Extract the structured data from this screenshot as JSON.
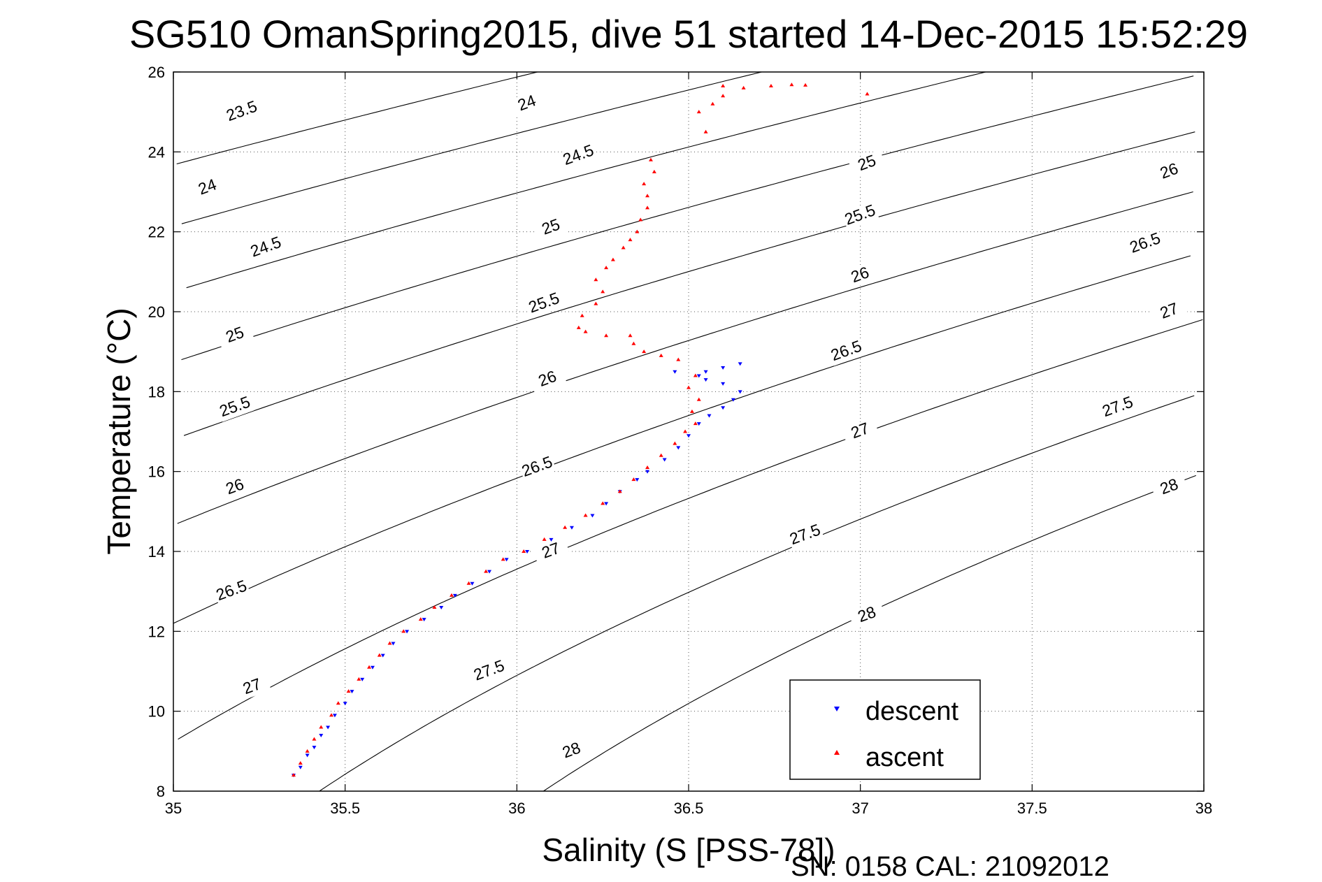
{
  "chart_data": {
    "type": "scatter",
    "title": "SG510 OmanSpring2015, dive 51 started 14-Dec-2015 15:52:29",
    "xlabel": "Salinity (S [PSS-78])",
    "ylabel": "Temperature (°C)",
    "xlim": [
      35,
      38
    ],
    "ylim": [
      8,
      26
    ],
    "x_ticks": [
      35,
      35.5,
      36,
      36.5,
      37,
      37.5,
      38
    ],
    "x_tick_labels": [
      "35",
      "35.5",
      "36",
      "36.5",
      "37",
      "37.5",
      "38"
    ],
    "y_ticks": [
      8,
      10,
      12,
      14,
      16,
      18,
      20,
      22,
      24,
      26
    ],
    "y_tick_labels": [
      "8",
      "10",
      "12",
      "14",
      "16",
      "18",
      "20",
      "22",
      "24",
      "26"
    ],
    "grid": true,
    "legend_position": "bottom-right",
    "footer": "SN: 0158  CAL: 21092012",
    "density_contours": {
      "levels": [
        23.5,
        24,
        24.5,
        25,
        25.5,
        26,
        26.5,
        27,
        27.5,
        28
      ],
      "labels": [
        {
          "text": "23.5",
          "s": 35.2,
          "t": 25.0
        },
        {
          "text": "24",
          "s": 36.03,
          "t": 25.2
        },
        {
          "text": "24",
          "s": 35.1,
          "t": 23.1
        },
        {
          "text": "24.5",
          "s": 36.18,
          "t": 23.9
        },
        {
          "text": "24.5",
          "s": 35.27,
          "t": 21.6
        },
        {
          "text": "25",
          "s": 36.1,
          "t": 22.1
        },
        {
          "text": "25",
          "s": 37.02,
          "t": 23.7
        },
        {
          "text": "25",
          "s": 35.18,
          "t": 19.4
        },
        {
          "text": "25.5",
          "s": 36.08,
          "t": 20.2
        },
        {
          "text": "25.5",
          "s": 37.0,
          "t": 22.4
        },
        {
          "text": "25.5",
          "s": 35.18,
          "t": 17.6
        },
        {
          "text": "26",
          "s": 36.09,
          "t": 18.3
        },
        {
          "text": "26",
          "s": 37.0,
          "t": 20.9
        },
        {
          "text": "26",
          "s": 37.9,
          "t": 23.5
        },
        {
          "text": "26",
          "s": 35.18,
          "t": 15.6
        },
        {
          "text": "26.5",
          "s": 36.06,
          "t": 16.1
        },
        {
          "text": "26.5",
          "s": 36.96,
          "t": 19.0
        },
        {
          "text": "26.5",
          "s": 37.83,
          "t": 21.7
        },
        {
          "text": "26.5",
          "s": 35.17,
          "t": 13.0
        },
        {
          "text": "27",
          "s": 36.1,
          "t": 14.0
        },
        {
          "text": "27",
          "s": 37.0,
          "t": 17.0
        },
        {
          "text": "27",
          "s": 37.9,
          "t": 20.0
        },
        {
          "text": "27",
          "s": 35.23,
          "t": 10.6
        },
        {
          "text": "27.5",
          "s": 35.92,
          "t": 11.0
        },
        {
          "text": "27.5",
          "s": 36.84,
          "t": 14.4
        },
        {
          "text": "27.5",
          "s": 37.75,
          "t": 17.6
        },
        {
          "text": "28",
          "s": 36.16,
          "t": 9.0
        },
        {
          "text": "28",
          "s": 37.02,
          "t": 12.4
        },
        {
          "text": "28",
          "s": 37.9,
          "t": 15.6
        }
      ]
    },
    "series": [
      {
        "name": "descent",
        "color": "#0000ff",
        "marker": "triangle-down",
        "points": [
          [
            35.35,
            8.4
          ],
          [
            35.37,
            8.6
          ],
          [
            35.39,
            8.9
          ],
          [
            35.41,
            9.1
          ],
          [
            35.43,
            9.4
          ],
          [
            35.45,
            9.6
          ],
          [
            35.47,
            9.9
          ],
          [
            35.5,
            10.2
          ],
          [
            35.52,
            10.5
          ],
          [
            35.55,
            10.8
          ],
          [
            35.58,
            11.1
          ],
          [
            35.61,
            11.4
          ],
          [
            35.64,
            11.7
          ],
          [
            35.68,
            12.0
          ],
          [
            35.73,
            12.3
          ],
          [
            35.78,
            12.6
          ],
          [
            35.82,
            12.9
          ],
          [
            35.87,
            13.2
          ],
          [
            35.92,
            13.5
          ],
          [
            35.97,
            13.8
          ],
          [
            36.03,
            14.0
          ],
          [
            36.1,
            14.3
          ],
          [
            36.16,
            14.6
          ],
          [
            36.22,
            14.9
          ],
          [
            36.26,
            15.2
          ],
          [
            36.3,
            15.5
          ],
          [
            36.35,
            15.8
          ],
          [
            36.38,
            16.0
          ],
          [
            36.43,
            16.3
          ],
          [
            36.47,
            16.6
          ],
          [
            36.5,
            16.9
          ],
          [
            36.53,
            17.2
          ],
          [
            36.56,
            17.4
          ],
          [
            36.6,
            17.6
          ],
          [
            36.63,
            17.8
          ],
          [
            36.65,
            18.0
          ],
          [
            36.6,
            18.2
          ],
          [
            36.55,
            18.3
          ],
          [
            36.53,
            18.4
          ],
          [
            36.46,
            18.5
          ],
          [
            36.55,
            18.5
          ],
          [
            36.6,
            18.6
          ],
          [
            36.65,
            18.7
          ]
        ]
      },
      {
        "name": "ascent",
        "color": "#ff0000",
        "marker": "triangle-up",
        "points": [
          [
            35.35,
            8.4
          ],
          [
            35.37,
            8.7
          ],
          [
            35.39,
            9.0
          ],
          [
            35.41,
            9.3
          ],
          [
            35.43,
            9.6
          ],
          [
            35.46,
            9.9
          ],
          [
            35.48,
            10.2
          ],
          [
            35.51,
            10.5
          ],
          [
            35.54,
            10.8
          ],
          [
            35.57,
            11.1
          ],
          [
            35.6,
            11.4
          ],
          [
            35.63,
            11.7
          ],
          [
            35.67,
            12.0
          ],
          [
            35.72,
            12.3
          ],
          [
            35.76,
            12.6
          ],
          [
            35.81,
            12.9
          ],
          [
            35.86,
            13.2
          ],
          [
            35.91,
            13.5
          ],
          [
            35.96,
            13.8
          ],
          [
            36.02,
            14.0
          ],
          [
            36.08,
            14.3
          ],
          [
            36.14,
            14.6
          ],
          [
            36.2,
            14.9
          ],
          [
            36.25,
            15.2
          ],
          [
            36.3,
            15.5
          ],
          [
            36.34,
            15.8
          ],
          [
            36.38,
            16.1
          ],
          [
            36.42,
            16.4
          ],
          [
            36.46,
            16.7
          ],
          [
            36.49,
            17.0
          ],
          [
            36.52,
            17.2
          ],
          [
            36.51,
            17.5
          ],
          [
            36.53,
            17.8
          ],
          [
            36.5,
            18.1
          ],
          [
            36.52,
            18.4
          ],
          [
            36.47,
            18.8
          ],
          [
            36.42,
            18.9
          ],
          [
            36.37,
            19.0
          ],
          [
            36.34,
            19.2
          ],
          [
            36.33,
            19.4
          ],
          [
            36.26,
            19.4
          ],
          [
            36.2,
            19.5
          ],
          [
            36.18,
            19.6
          ],
          [
            36.19,
            19.9
          ],
          [
            36.23,
            20.2
          ],
          [
            36.25,
            20.5
          ],
          [
            36.23,
            20.8
          ],
          [
            36.26,
            21.1
          ],
          [
            36.28,
            21.3
          ],
          [
            36.31,
            21.6
          ],
          [
            36.33,
            21.8
          ],
          [
            36.35,
            22.0
          ],
          [
            36.36,
            22.3
          ],
          [
            36.38,
            22.6
          ],
          [
            36.38,
            22.9
          ],
          [
            36.37,
            23.2
          ],
          [
            36.4,
            23.5
          ],
          [
            36.39,
            23.8
          ],
          [
            36.55,
            24.5
          ],
          [
            36.53,
            25.0
          ],
          [
            36.57,
            25.2
          ],
          [
            36.6,
            25.4
          ],
          [
            36.66,
            25.6
          ],
          [
            36.74,
            25.65
          ],
          [
            36.8,
            25.68
          ],
          [
            36.84,
            25.67
          ],
          [
            36.6,
            25.65
          ],
          [
            37.02,
            25.45
          ]
        ]
      }
    ]
  }
}
